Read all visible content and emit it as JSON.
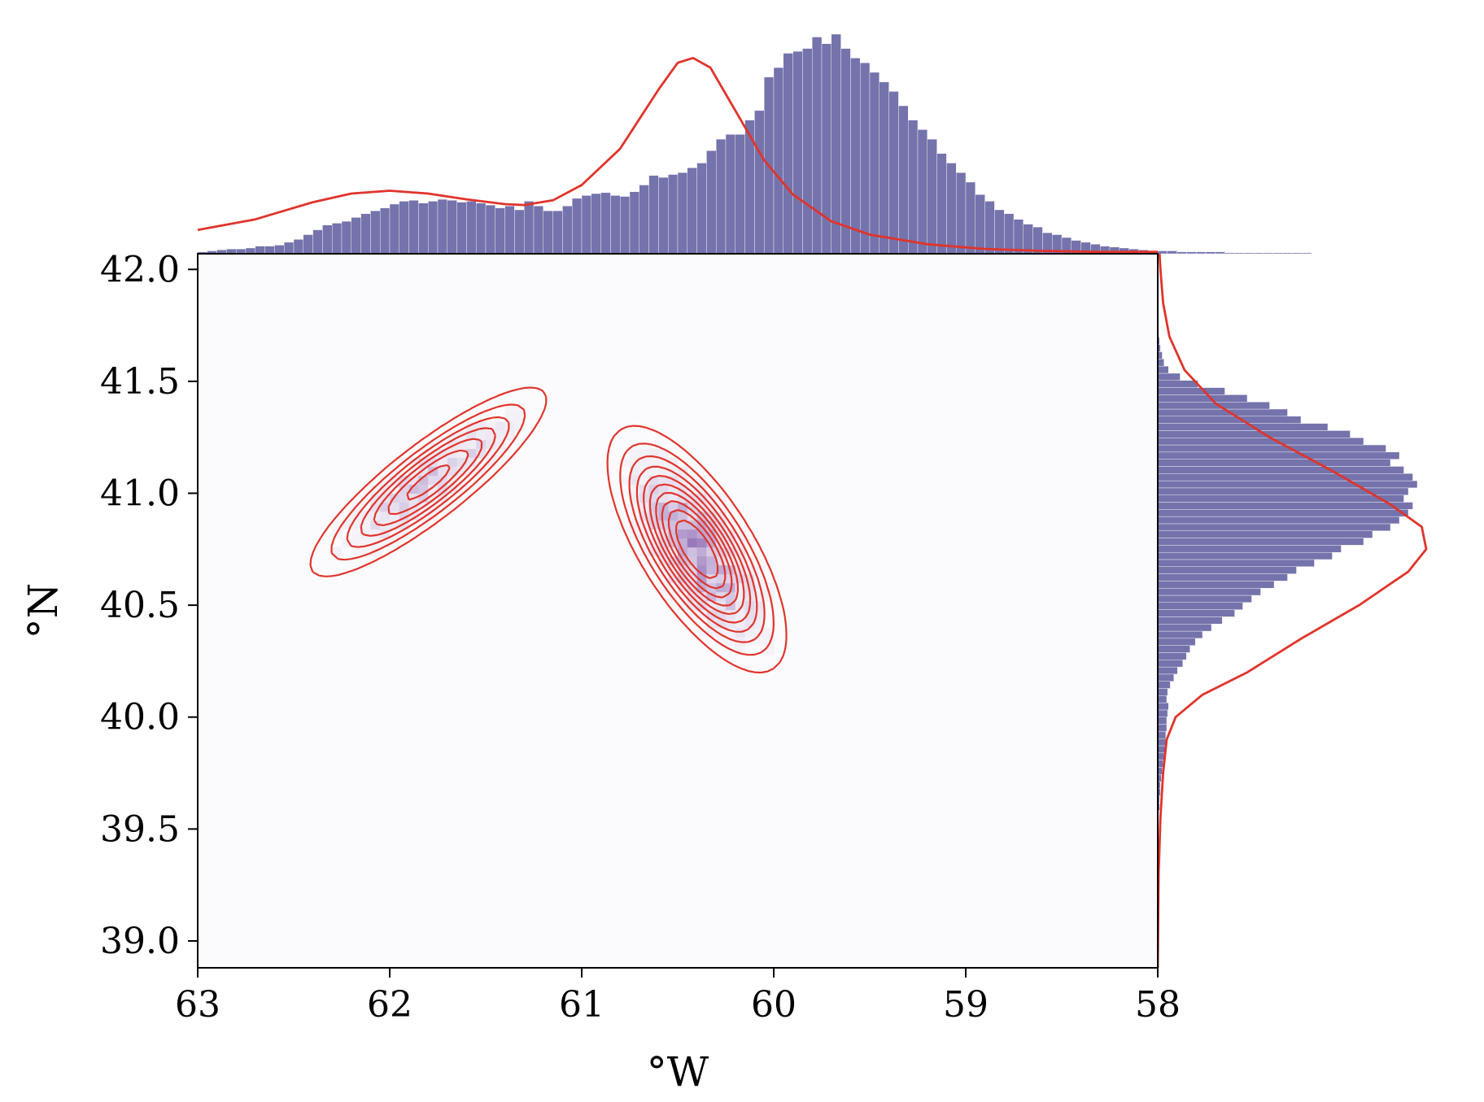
{
  "chart_data": {
    "type": "joint_hist2d_kde",
    "title": "",
    "xlabel": "°W",
    "ylabel": "°N",
    "x_axis_reversed": true,
    "xlim": [
      63,
      58
    ],
    "ylim": [
      38.88,
      42.07
    ],
    "xticks": [
      63,
      62,
      61,
      60,
      59,
      58
    ],
    "xtick_labels": [
      "63",
      "62",
      "61",
      "60",
      "59",
      "58"
    ],
    "yticks": [
      39.0,
      39.5,
      40.0,
      40.5,
      41.0,
      41.5,
      42.0
    ],
    "ytick_labels": [
      "39.0",
      "39.5",
      "40.0",
      "40.5",
      "41.0",
      "41.5",
      "42.0"
    ],
    "grid": false,
    "legend": "none",
    "main_panel": {
      "heatmap": "2D histogram of point density, white to dark purple",
      "kde_contour_modes": [
        {
          "lon": 61.8,
          "lat": 41.05,
          "sd_lon": 0.32,
          "sd_lat": 0.22,
          "corr": -0.87,
          "weight": 0.4
        },
        {
          "lon": 60.4,
          "lat": 40.75,
          "sd_lon": 0.22,
          "sd_lat": 0.26,
          "corr": 0.7,
          "weight": 0.6
        }
      ],
      "contour_levels": 10
    },
    "marginal_x": {
      "bins_start": 63,
      "bin_width": 0.05,
      "counts": [
        0.02,
        0.03,
        0.04,
        0.05,
        0.05,
        0.06,
        0.08,
        0.08,
        0.09,
        0.12,
        0.15,
        0.2,
        0.25,
        0.3,
        0.32,
        0.34,
        0.38,
        0.42,
        0.45,
        0.48,
        0.52,
        0.55,
        0.56,
        0.53,
        0.55,
        0.57,
        0.56,
        0.54,
        0.55,
        0.53,
        0.51,
        0.48,
        0.5,
        0.46,
        0.55,
        0.5,
        0.45,
        0.45,
        0.5,
        0.58,
        0.61,
        0.63,
        0.64,
        0.61,
        0.6,
        0.65,
        0.72,
        0.82,
        0.8,
        0.83,
        0.85,
        0.9,
        0.95,
        1.08,
        1.2,
        1.25,
        1.25,
        1.4,
        1.5,
        1.85,
        1.95,
        2.1,
        2.12,
        2.15,
        2.27,
        2.2,
        2.3,
        2.15,
        2.05,
        2.0,
        1.9,
        1.8,
        1.7,
        1.55,
        1.4,
        1.3,
        1.2,
        1.05,
        0.95,
        0.85,
        0.75,
        0.62,
        0.55,
        0.46,
        0.42,
        0.36,
        0.31,
        0.28,
        0.22,
        0.2,
        0.17,
        0.14,
        0.12,
        0.1,
        0.08,
        0.07,
        0.06,
        0.05,
        0.04,
        0.03,
        0.03,
        0.03,
        0.02,
        0.02,
        0.02,
        0.02,
        0.02,
        0.01,
        0.01,
        0.01,
        0.01,
        0.01,
        0.01,
        0.01,
        0.01,
        0.01,
        0.0,
        0.0,
        0.0,
        0.0
      ],
      "kde": [
        [
          63,
          0.25
        ],
        [
          62.7,
          0.36
        ],
        [
          62.4,
          0.54
        ],
        [
          62.2,
          0.63
        ],
        [
          62.0,
          0.66
        ],
        [
          61.8,
          0.63
        ],
        [
          61.6,
          0.57
        ],
        [
          61.4,
          0.52
        ],
        [
          61.3,
          0.51
        ],
        [
          61.15,
          0.56
        ],
        [
          61.0,
          0.72
        ],
        [
          60.8,
          1.1
        ],
        [
          60.6,
          1.72
        ],
        [
          60.5,
          2.0
        ],
        [
          60.42,
          2.05
        ],
        [
          60.33,
          1.95
        ],
        [
          60.2,
          1.5
        ],
        [
          60.05,
          0.98
        ],
        [
          59.9,
          0.62
        ],
        [
          59.7,
          0.34
        ],
        [
          59.5,
          0.2
        ],
        [
          59.2,
          0.1
        ],
        [
          58.9,
          0.05
        ],
        [
          58.6,
          0.03
        ],
        [
          58.3,
          0.02
        ],
        [
          58.0,
          0.02
        ]
      ]
    },
    "marginal_y": {
      "bins_start": 38.88,
      "bin_width": 0.032,
      "counts": [
        0.0,
        0.0,
        0.0,
        0.0,
        0.0,
        0.0,
        0.0,
        0.0,
        0.0,
        0.0,
        0.0,
        0.0,
        0.0,
        0.0,
        0.0,
        0.0,
        0.0,
        0.0,
        0.0,
        0.01,
        0.01,
        0.01,
        0.02,
        0.02,
        0.03,
        0.03,
        0.04,
        0.05,
        0.06,
        0.07,
        0.08,
        0.09,
        0.09,
        0.1,
        0.1,
        0.11,
        0.12,
        0.1,
        0.11,
        0.14,
        0.18,
        0.22,
        0.28,
        0.32,
        0.36,
        0.42,
        0.5,
        0.6,
        0.72,
        0.86,
        0.95,
        1.05,
        1.15,
        1.3,
        1.45,
        1.55,
        1.75,
        1.95,
        2.05,
        2.3,
        2.4,
        2.6,
        2.7,
        2.8,
        2.85,
        2.75,
        2.8,
        2.9,
        2.85,
        2.75,
        2.6,
        2.7,
        2.55,
        2.3,
        2.15,
        1.9,
        1.6,
        1.45,
        1.25,
        1.0,
        0.75,
        0.45,
        0.25,
        0.12,
        0.07,
        0.05,
        0.03,
        0.02,
        0.01,
        0.01,
        0.0,
        0.0,
        0.0,
        0.0,
        0.0,
        0.0,
        0.0,
        0.0,
        0.0,
        0.0
      ],
      "kde": [
        [
          38.88,
          0.0
        ],
        [
          39.3,
          0.01
        ],
        [
          39.55,
          0.03
        ],
        [
          39.75,
          0.06
        ],
        [
          39.9,
          0.1
        ],
        [
          40.0,
          0.2
        ],
        [
          40.1,
          0.5
        ],
        [
          40.2,
          1.0
        ],
        [
          40.35,
          1.6
        ],
        [
          40.5,
          2.25
        ],
        [
          40.65,
          2.8
        ],
        [
          40.75,
          3.0
        ],
        [
          40.85,
          2.95
        ],
        [
          40.95,
          2.6
        ],
        [
          41.1,
          1.95
        ],
        [
          41.25,
          1.25
        ],
        [
          41.4,
          0.65
        ],
        [
          41.55,
          0.3
        ],
        [
          41.7,
          0.13
        ],
        [
          41.85,
          0.06
        ],
        [
          42.0,
          0.03
        ],
        [
          42.07,
          0.02
        ]
      ]
    },
    "colors": {
      "histogram_bar": "#7473ac",
      "kde_line": "#e0342b",
      "heatmap_low": "#fbfbfd",
      "heatmap_high": "#3f007d",
      "axis": "#000000"
    }
  }
}
